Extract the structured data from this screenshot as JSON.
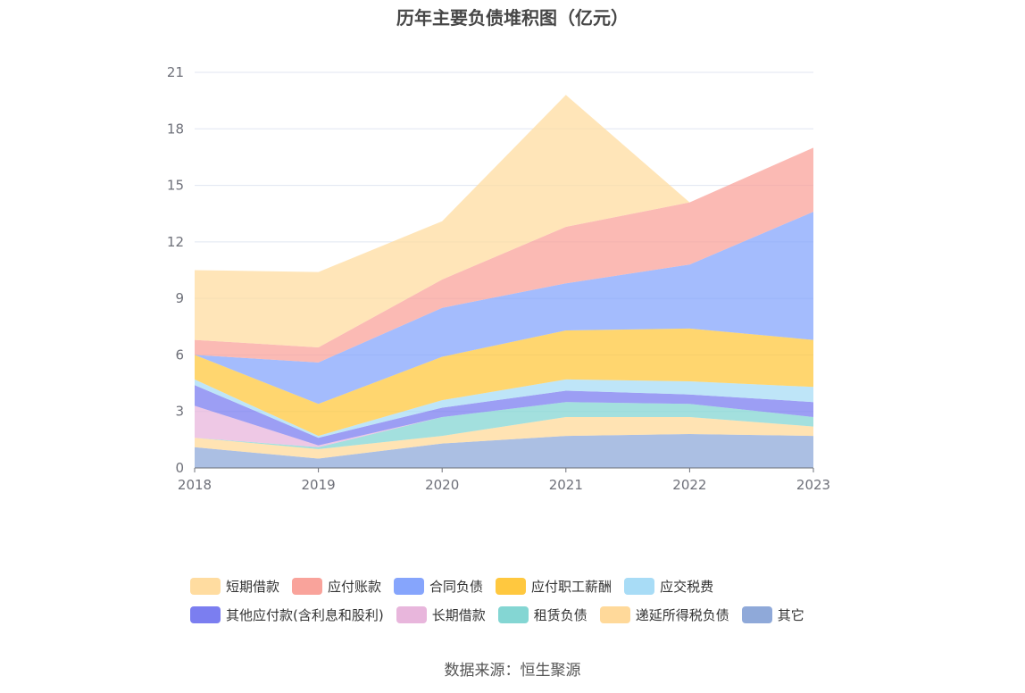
{
  "title": "历年主要负债堆积图（亿元）",
  "source": "数据来源：恒生聚源",
  "chart_data": {
    "type": "area",
    "stacked": true,
    "categories": [
      "2018",
      "2019",
      "2020",
      "2021",
      "2022",
      "2023"
    ],
    "ylim": [
      0,
      21
    ],
    "yticks": [
      "0",
      "3",
      "6",
      "9",
      "12",
      "15",
      "18",
      "21"
    ],
    "grid": true,
    "legend_position": "bottom",
    "series": [
      {
        "name": "其它",
        "color": "#8fa9d9",
        "values": [
          1.1,
          0.5,
          1.3,
          1.7,
          1.8,
          1.7
        ]
      },
      {
        "name": "递延所得税负债",
        "color": "#ffd99a",
        "values": [
          0.5,
          0.5,
          0.4,
          1.0,
          0.9,
          0.5
        ]
      },
      {
        "name": "租赁负债",
        "color": "#84d6d3",
        "values": [
          0.0,
          0.1,
          1.0,
          0.8,
          0.7,
          0.5
        ]
      },
      {
        "name": "长期借款",
        "color": "#e8b6dc",
        "values": [
          1.7,
          0.1,
          0.0,
          0.0,
          0.0,
          0.0
        ]
      },
      {
        "name": "其他应付款(含利息和股利)",
        "color": "#7b7ef0",
        "values": [
          1.1,
          0.4,
          0.5,
          0.6,
          0.5,
          0.8
        ]
      },
      {
        "name": "应交税费",
        "color": "#a8dcf6",
        "values": [
          0.3,
          0.1,
          0.4,
          0.6,
          0.7,
          0.8
        ]
      },
      {
        "name": "应付职工薪酬",
        "color": "#ffc83f",
        "values": [
          1.3,
          1.7,
          2.3,
          2.6,
          2.8,
          2.5
        ]
      },
      {
        "name": "合同负债",
        "color": "#86a5fc",
        "values": [
          0.0,
          2.2,
          2.6,
          2.5,
          3.4,
          6.8
        ]
      },
      {
        "name": "应付账款",
        "color": "#f9a39b",
        "values": [
          0.8,
          0.8,
          1.5,
          3.0,
          3.3,
          3.4
        ]
      },
      {
        "name": "短期借款",
        "color": "#ffdca0",
        "values": [
          3.7,
          4.0,
          3.1,
          7.0,
          0.0,
          0.0
        ]
      }
    ],
    "legend_order": [
      "短期借款",
      "应付账款",
      "合同负债",
      "应付职工薪酬",
      "应交税费",
      "其他应付款(含利息和股利)",
      "长期借款",
      "租赁负债",
      "递延所得税负债",
      "其它"
    ]
  }
}
